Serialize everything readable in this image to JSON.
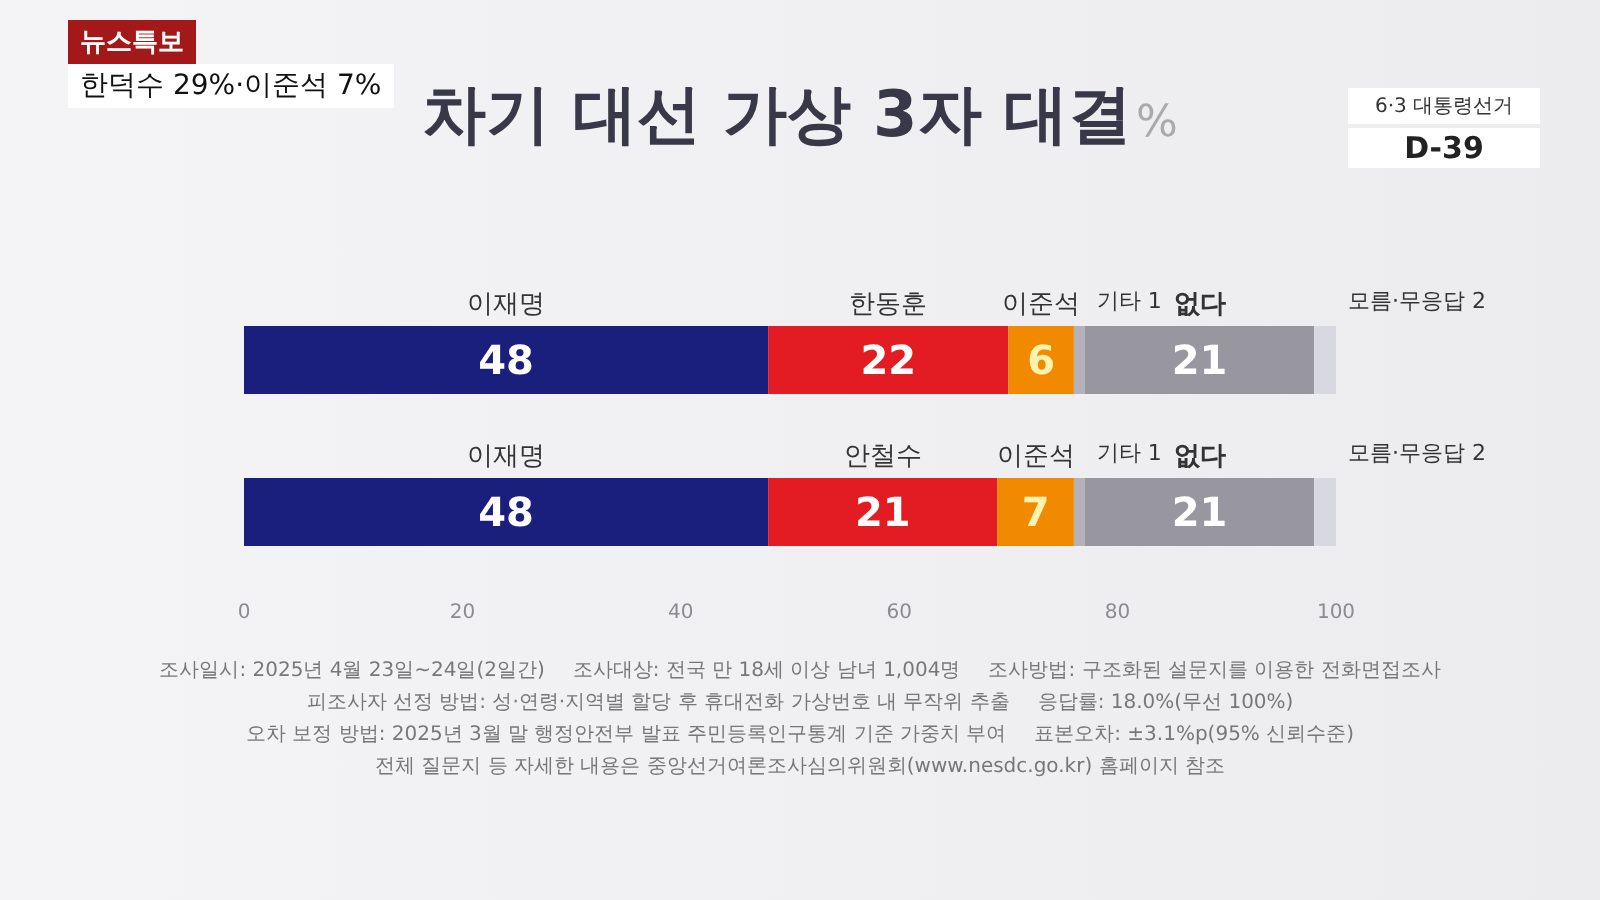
{
  "chart_data": {
    "type": "bar",
    "orientation": "horizontal",
    "stacked": true,
    "title": "차기 대선 가상 3자 대결",
    "subtitle": "%",
    "categories": [
      null,
      null
    ],
    "series": [
      {
        "color": "#1a1f7e",
        "values": [
          48,
          48
        ],
        "value_labels": [
          "48",
          "48"
        ]
      },
      {
        "color": "#e31b23",
        "values": [
          22,
          21
        ],
        "value_labels": [
          "22",
          "21"
        ]
      },
      {
        "color": "#f28a00",
        "values": [
          6,
          7
        ],
        "value_labels": [
          "6",
          "7"
        ]
      },
      {
        "color": "#b3b2bb",
        "values": [
          1,
          1
        ],
        "value_labels": [
          null,
          null
        ]
      },
      {
        "color": "#98969f",
        "values": [
          21,
          21
        ],
        "value_labels": [
          "21",
          "21"
        ]
      },
      {
        "color": "#d8d8e0",
        "values": [
          2,
          2
        ],
        "value_labels": [
          null,
          null
        ]
      }
    ],
    "xlim": [
      0,
      100
    ],
    "xticks": [
      0,
      20,
      40,
      60,
      80,
      100
    ],
    "grid": false,
    "legend": false,
    "annotations": [
      "뉴스특보",
      "한덕수 29%·이준석 7%",
      "6·3 대통령선거",
      "D-39",
      "이재명",
      "한동훈",
      "이준석",
      "기타 1",
      "없다",
      "모름·무응답 2",
      "이재명",
      "안철수",
      "이준석",
      "기타 1",
      "없다",
      "모름·무응답 2",
      "조사일시: 2025년 4월 23일~24일(2일간)",
      "조사대상: 전국 만 18세 이상 남녀 1,004명",
      "조사방법: 구조화된 설문지를 이용한 전화면접조사",
      "피조사자 선정 방법: 성·연령·지역별 할당 후 휴대전화 가상번호 내 무작위 추출",
      "응답률: 18.0%(무선 100%)",
      "오차 보정 방법: 2025년 3월 말 행정안전부 발표 주민등록인구통계 기준 가중치 부여",
      "표본오차: ±3.1%p(95% 신뢰수준)",
      "전체 질문지 등 자세한 내용은 중앙선거여론조사심의위원회(www.nesdc.go.kr) 홈페이지 참조"
    ]
  }
}
